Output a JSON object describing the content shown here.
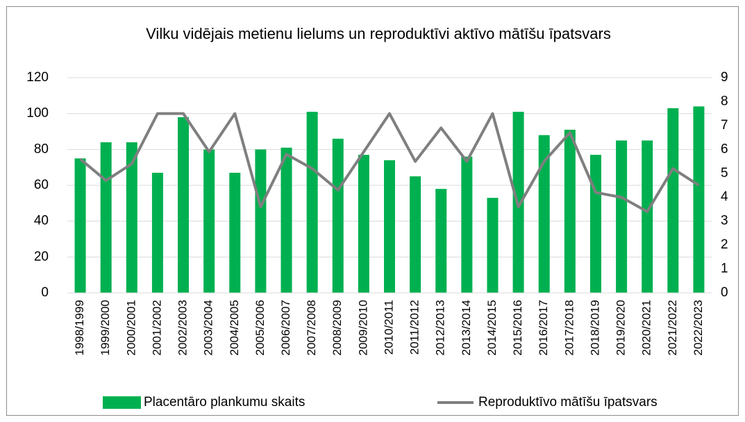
{
  "chart_data": {
    "type": "bar",
    "title": "Vilku vidējais metienu lielums un reproduktīvi aktīvo mātīšu īpatsvars",
    "categories": [
      "1998/1999",
      "1999/2000",
      "2000/2001",
      "2001/2002",
      "2002/2003",
      "2003/2004",
      "2004/2005",
      "2005/2006",
      "2006/2007",
      "2007/2008",
      "2008/2009",
      "2009/2010",
      "2010/2011",
      "2011/2012",
      "2012/2013",
      "2013/2014",
      "2014/2015",
      "2015/2016",
      "2016/2017",
      "2017/2018",
      "2018/2019",
      "2019/2020",
      "2020/2021",
      "2021/2022",
      "2022/2023"
    ],
    "series": [
      {
        "name": "Placentāro plankumu skaits",
        "type": "bar",
        "color": "#00b050",
        "values": [
          75,
          84,
          84,
          67,
          98,
          80,
          67,
          80,
          81,
          101,
          86,
          77,
          74,
          65,
          58,
          76,
          53,
          101,
          88,
          91,
          77,
          85,
          85,
          103,
          104
        ]
      },
      {
        "name": "Reproduktīvo mātīšu īpatsvars",
        "type": "line",
        "axis": "y2",
        "color": "#7f7f7f",
        "values": [
          5.6,
          4.7,
          5.4,
          7.5,
          7.5,
          5.9,
          7.5,
          3.6,
          5.8,
          5.2,
          4.3,
          5.9,
          7.5,
          5.5,
          6.9,
          5.5,
          7.5,
          3.6,
          5.5,
          6.7,
          4.2,
          4.0,
          3.4,
          5.2,
          4.5
        ]
      }
    ],
    "ylim": [
      0,
      120
    ],
    "yticks": [
      0,
      20,
      40,
      60,
      80,
      100,
      120
    ],
    "y2lim": [
      0,
      9
    ],
    "y2ticks": [
      0,
      1,
      2,
      3,
      4,
      5,
      6,
      7,
      8,
      9
    ],
    "grid": true,
    "legend": "bottom"
  }
}
